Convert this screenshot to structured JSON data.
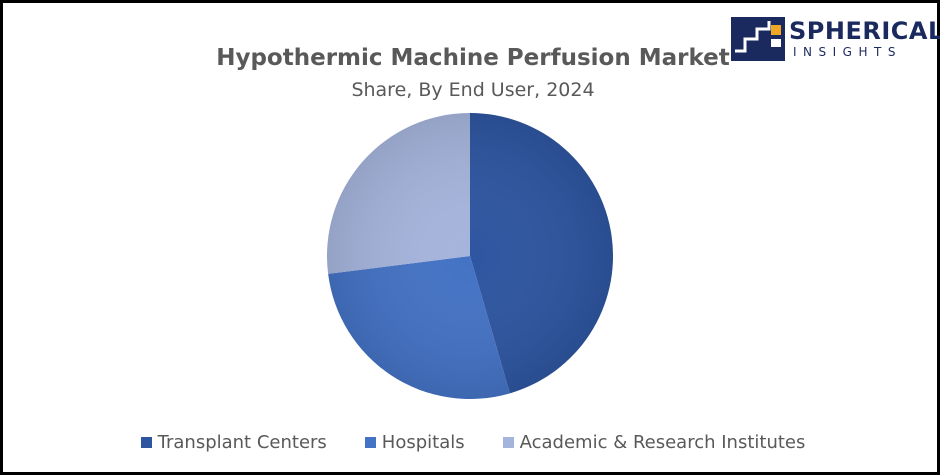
{
  "logo": {
    "name": "SPHERICAL",
    "sub": "INSIGHTS"
  },
  "chart_data": {
    "type": "pie",
    "title": "Hypothermic Machine Perfusion Market",
    "subtitle": "Share, By End User, 2024",
    "legend_position": "bottom",
    "series": [
      {
        "name": "Transplant Centers",
        "value": 45.5,
        "color": "#2e55a0"
      },
      {
        "name": "Hospitals",
        "value": 27.5,
        "color": "#4472c4"
      },
      {
        "name": "Academic & Research Institutes",
        "value": 27.0,
        "color": "#a5b4dc"
      }
    ]
  }
}
